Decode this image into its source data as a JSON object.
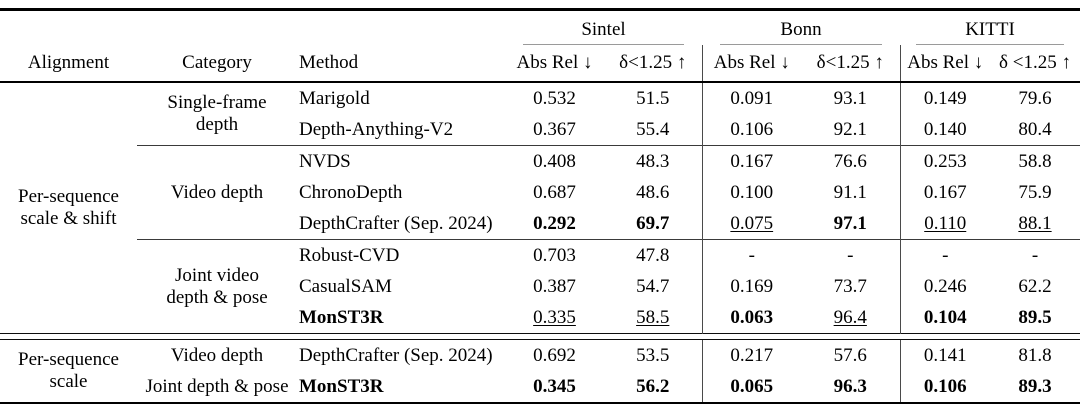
{
  "table": {
    "columns": {
      "alignment": "Alignment",
      "category": "Category",
      "method": "Method"
    },
    "dataset_groups": [
      {
        "name": "Sintel",
        "abs_rel": "Abs Rel ↓",
        "delta": "δ<1.25 ↑"
      },
      {
        "name": "Bonn",
        "abs_rel": "Abs Rel ↓",
        "delta": "δ<1.25 ↑"
      },
      {
        "name": "KITTI",
        "abs_rel": "Abs Rel ↓",
        "delta": "δ <1.25 ↑"
      }
    ],
    "sections": [
      {
        "alignment_lines": [
          "Per-sequence",
          "scale & shift"
        ],
        "blocks": [
          {
            "category_lines": [
              "Single-frame",
              "depth"
            ],
            "rows": [
              {
                "method": "Marigold",
                "values": [
                  {
                    "v": "0.532"
                  },
                  {
                    "v": "51.5"
                  },
                  {
                    "v": "0.091"
                  },
                  {
                    "v": "93.1"
                  },
                  {
                    "v": "0.149"
                  },
                  {
                    "v": "79.6"
                  }
                ]
              },
              {
                "method": "Depth-Anything-V2",
                "values": [
                  {
                    "v": "0.367"
                  },
                  {
                    "v": "55.4"
                  },
                  {
                    "v": "0.106"
                  },
                  {
                    "v": "92.1"
                  },
                  {
                    "v": "0.140"
                  },
                  {
                    "v": "80.4"
                  }
                ]
              }
            ]
          },
          {
            "category_lines": [
              "Video depth"
            ],
            "rows": [
              {
                "method": "NVDS",
                "values": [
                  {
                    "v": "0.408"
                  },
                  {
                    "v": "48.3"
                  },
                  {
                    "v": "0.167"
                  },
                  {
                    "v": "76.6"
                  },
                  {
                    "v": "0.253"
                  },
                  {
                    "v": "58.8"
                  }
                ]
              },
              {
                "method": "ChronoDepth",
                "values": [
                  {
                    "v": "0.687"
                  },
                  {
                    "v": "48.6"
                  },
                  {
                    "v": "0.100"
                  },
                  {
                    "v": "91.1"
                  },
                  {
                    "v": "0.167"
                  },
                  {
                    "v": "75.9"
                  }
                ]
              },
              {
                "method": "DepthCrafter (Sep. 2024)",
                "values": [
                  {
                    "v": "0.292",
                    "b": true
                  },
                  {
                    "v": "69.7",
                    "b": true
                  },
                  {
                    "v": "0.075",
                    "u": true
                  },
                  {
                    "v": "97.1",
                    "b": true
                  },
                  {
                    "v": "0.110",
                    "u": true
                  },
                  {
                    "v": "88.1",
                    "u": true
                  }
                ]
              }
            ]
          },
          {
            "category_lines": [
              "Joint video",
              "depth & pose"
            ],
            "rows": [
              {
                "method": "Robust-CVD",
                "values": [
                  {
                    "v": "0.703"
                  },
                  {
                    "v": "47.8"
                  },
                  {
                    "v": "-"
                  },
                  {
                    "v": "-"
                  },
                  {
                    "v": "-"
                  },
                  {
                    "v": "-"
                  }
                ]
              },
              {
                "method": "CasualSAM",
                "values": [
                  {
                    "v": "0.387"
                  },
                  {
                    "v": "54.7"
                  },
                  {
                    "v": "0.169"
                  },
                  {
                    "v": "73.7"
                  },
                  {
                    "v": "0.246"
                  },
                  {
                    "v": "62.2"
                  }
                ]
              },
              {
                "method": "MonST3R",
                "method_bold": true,
                "values": [
                  {
                    "v": "0.335",
                    "u": true
                  },
                  {
                    "v": "58.5",
                    "u": true
                  },
                  {
                    "v": "0.063",
                    "b": true
                  },
                  {
                    "v": "96.4",
                    "u": true
                  },
                  {
                    "v": "0.104",
                    "b": true
                  },
                  {
                    "v": "89.5",
                    "b": true
                  }
                ]
              }
            ]
          }
        ]
      },
      {
        "alignment_lines": [
          "Per-sequence",
          "scale"
        ],
        "blocks": [
          {
            "category_lines": [
              "Video depth"
            ],
            "rows": [
              {
                "method": "DepthCrafter (Sep. 2024)",
                "values": [
                  {
                    "v": "0.692"
                  },
                  {
                    "v": "53.5"
                  },
                  {
                    "v": "0.217"
                  },
                  {
                    "v": "57.6"
                  },
                  {
                    "v": "0.141"
                  },
                  {
                    "v": "81.8"
                  }
                ]
              }
            ]
          },
          {
            "category_lines": [
              "Joint depth & pose"
            ],
            "rows": [
              {
                "method": "MonST3R",
                "method_bold": true,
                "values": [
                  {
                    "v": "0.345",
                    "b": true
                  },
                  {
                    "v": "56.2",
                    "b": true
                  },
                  {
                    "v": "0.065",
                    "b": true
                  },
                  {
                    "v": "96.3",
                    "b": true
                  },
                  {
                    "v": "0.106",
                    "b": true
                  },
                  {
                    "v": "89.3",
                    "b": true
                  }
                ]
              }
            ]
          }
        ]
      }
    ],
    "colors": {
      "rule_black": "#000000",
      "cmidrule_gray": "#9a9a9a",
      "column_bar": "#4a4a4a"
    }
  }
}
